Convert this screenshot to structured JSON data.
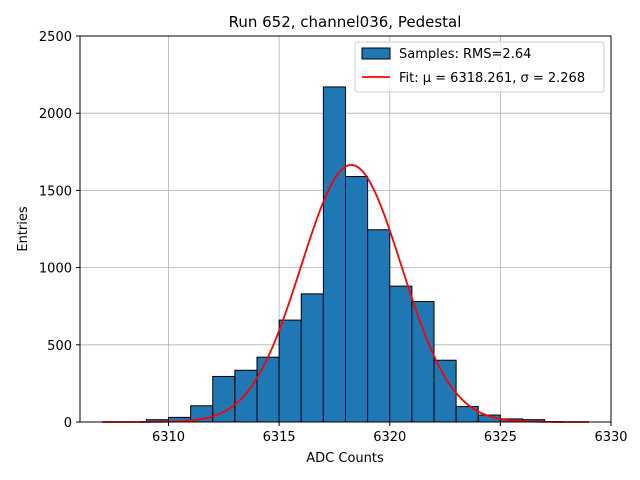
{
  "chart_data": {
    "type": "bar",
    "title": "Run 652, channel036, Pedestal",
    "xlabel": "ADC Counts",
    "ylabel": "Entries",
    "xlim": [
      6306,
      6330
    ],
    "ylim": [
      0,
      2500
    ],
    "xticks": [
      6310,
      6315,
      6320,
      6325,
      6330
    ],
    "yticks": [
      0,
      500,
      1000,
      1500,
      2000,
      2500
    ],
    "grid": true,
    "legend_position": "top-right",
    "histogram": {
      "name": "Samples: RMS=2.64",
      "color": "#1f77b4",
      "edge_color": "#000000",
      "bin_edges": [
        6309,
        6310,
        6311,
        6312,
        6313,
        6314,
        6315,
        6316,
        6317,
        6318,
        6319,
        6320,
        6321,
        6322,
        6323,
        6324,
        6325,
        6326,
        6327
      ],
      "counts": [
        15,
        30,
        105,
        295,
        335,
        420,
        660,
        830,
        2170,
        1590,
        1245,
        880,
        780,
        400,
        100,
        45,
        20,
        15
      ]
    },
    "fit": {
      "name": "Fit: μ = 6318.261, σ = 2.268",
      "color": "#ff0000",
      "mu": 6318.261,
      "sigma": 2.268,
      "amplitude": 1665,
      "x_range": [
        6307,
        6329
      ]
    }
  }
}
